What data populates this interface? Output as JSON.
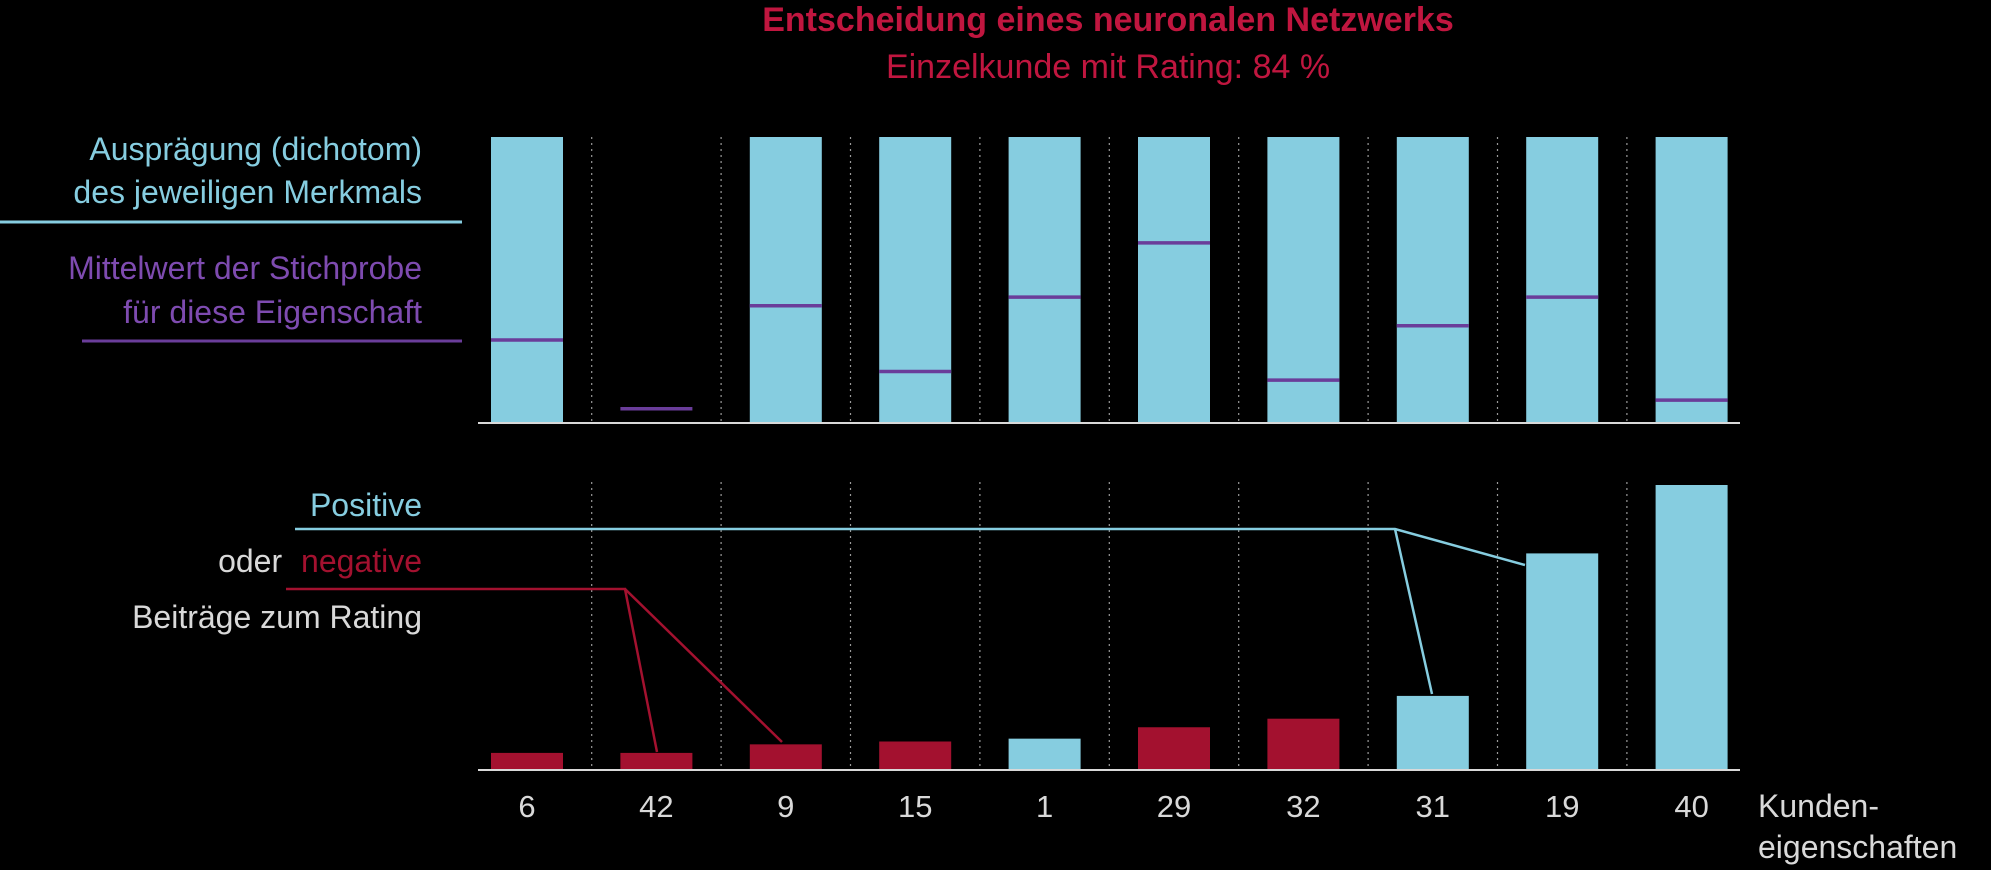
{
  "chart_data": {
    "type": "bar",
    "title": "Entscheidung eines neuronalen Netzwerks",
    "subtitle": "Einzelkunde mit Rating: 84 %",
    "categories": [
      "6",
      "42",
      "9",
      "15",
      "1",
      "29",
      "32",
      "31",
      "19",
      "40"
    ],
    "xlabel_line1": "Kunden-",
    "xlabel_line2": "eigenschaften",
    "top_panel": {
      "legend_feature_line1": "Ausprägung (dichotom)",
      "legend_feature_line2": "des jeweiligen Merkmals",
      "legend_mean_line1": "Mittelwert der Stichprobe",
      "legend_mean_line2": "für diese Eigenschaft",
      "feature_values": [
        1,
        0,
        1,
        1,
        1,
        1,
        1,
        1,
        1,
        1
      ],
      "sample_means": [
        0.29,
        0.05,
        0.41,
        0.18,
        0.44,
        0.63,
        0.15,
        0.34,
        0.44,
        0.08
      ],
      "ylim": [
        0,
        1
      ]
    },
    "bottom_panel": {
      "legend_positive": "Positive",
      "legend_or": "oder",
      "legend_negative": "negative",
      "legend_contrib": "Beiträge zum Rating",
      "contributions": [
        -0.06,
        -0.06,
        -0.09,
        -0.1,
        0.11,
        -0.15,
        -0.18,
        0.26,
        0.76,
        1.0
      ],
      "ylim": [
        0,
        1
      ]
    },
    "colors": {
      "positive": "#86cde0",
      "negative": "#a3112f",
      "mean": "#6a3d9a",
      "title": "#c0163f",
      "axis": "#d9d9d9",
      "text": "#d9d9d9",
      "feature_legend": "#86cde0",
      "mean_legend": "#7e4bb0"
    }
  }
}
